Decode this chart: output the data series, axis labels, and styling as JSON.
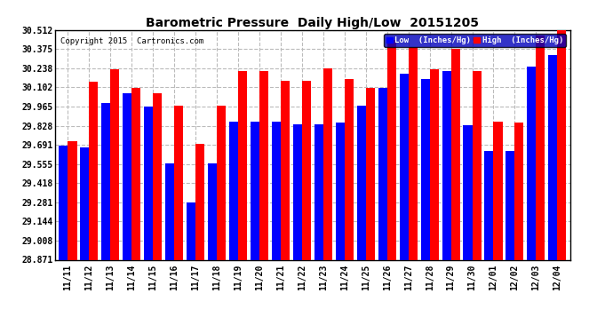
{
  "title": "Barometric Pressure  Daily High/Low  20151205",
  "copyright": "Copyright 2015  Cartronics.com",
  "legend_low": "Low  (Inches/Hg)",
  "legend_high": "High  (Inches/Hg)",
  "dates": [
    "11/11",
    "11/12",
    "11/13",
    "11/14",
    "11/15",
    "11/16",
    "11/17",
    "11/18",
    "11/19",
    "11/20",
    "11/21",
    "11/22",
    "11/23",
    "11/24",
    "11/25",
    "11/26",
    "11/27",
    "11/28",
    "11/29",
    "11/30",
    "12/01",
    "12/02",
    "12/03",
    "12/04"
  ],
  "low_values": [
    29.689,
    29.672,
    29.99,
    30.058,
    29.962,
    29.56,
    29.281,
    29.56,
    29.86,
    29.86,
    29.86,
    29.84,
    29.84,
    29.85,
    29.97,
    30.1,
    30.2,
    30.16,
    30.22,
    29.83,
    29.65,
    29.65,
    30.25,
    30.33
  ],
  "high_values": [
    29.72,
    30.14,
    30.23,
    30.1,
    30.06,
    29.97,
    29.7,
    29.97,
    30.22,
    30.22,
    30.15,
    30.15,
    30.24,
    30.16,
    30.1,
    30.44,
    30.39,
    30.23,
    30.38,
    30.22,
    29.86,
    29.85,
    30.47,
    30.51
  ],
  "ymin": 28.871,
  "ymax": 30.512,
  "yticks": [
    28.871,
    29.008,
    29.144,
    29.281,
    29.418,
    29.555,
    29.691,
    29.828,
    29.965,
    30.102,
    30.238,
    30.375,
    30.512
  ],
  "bar_color_low": "#0000FF",
  "bar_color_high": "#FF0000",
  "bg_color": "#FFFFFF",
  "grid_color": "#BBBBBB",
  "title_color": "#000000"
}
